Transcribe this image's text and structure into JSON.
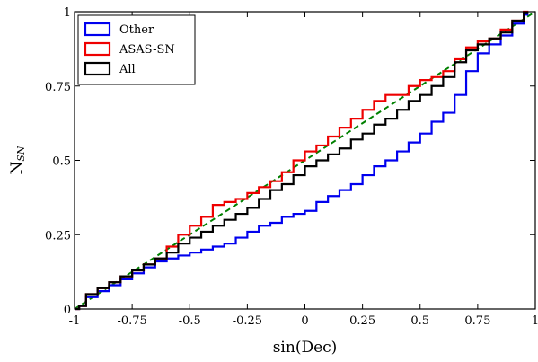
{
  "chart_data": {
    "type": "line",
    "title": "",
    "xlabel": "sin(Dec)",
    "ylabel": {
      "main": "N",
      "sub": "SN"
    },
    "xlim": [
      -1,
      1
    ],
    "ylim": [
      0,
      1
    ],
    "xticks": [
      -1,
      -0.75,
      -0.5,
      -0.25,
      0,
      0.25,
      0.5,
      0.75,
      1
    ],
    "xtick_labels": [
      "-1",
      "-0.75",
      "-0.5",
      "-0.25",
      "0",
      "0.25",
      "0.5",
      "0.75",
      "1"
    ],
    "yticks": [
      0,
      0.25,
      0.5,
      0.75,
      1
    ],
    "ytick_labels": [
      "0",
      "0.25",
      "0.5",
      "0.75",
      "1"
    ],
    "grid": false,
    "legend_position": "top-left",
    "series": [
      {
        "name": "Other",
        "color": "#0000ee",
        "style": "step",
        "x": [
          -1,
          -0.98,
          -0.95,
          -0.9,
          -0.85,
          -0.8,
          -0.75,
          -0.7,
          -0.65,
          -0.6,
          -0.55,
          -0.5,
          -0.45,
          -0.4,
          -0.35,
          -0.3,
          -0.25,
          -0.2,
          -0.15,
          -0.1,
          -0.05,
          0,
          0.05,
          0.1,
          0.15,
          0.2,
          0.25,
          0.3,
          0.35,
          0.4,
          0.45,
          0.5,
          0.55,
          0.6,
          0.65,
          0.7,
          0.75,
          0.8,
          0.85,
          0.9,
          0.95
        ],
        "y": [
          0,
          0.01,
          0.04,
          0.06,
          0.08,
          0.1,
          0.12,
          0.14,
          0.16,
          0.17,
          0.18,
          0.19,
          0.2,
          0.21,
          0.22,
          0.24,
          0.26,
          0.28,
          0.29,
          0.31,
          0.32,
          0.33,
          0.36,
          0.38,
          0.4,
          0.42,
          0.45,
          0.48,
          0.5,
          0.53,
          0.56,
          0.59,
          0.63,
          0.66,
          0.72,
          0.8,
          0.86,
          0.89,
          0.92,
          0.96,
          0.99
        ],
        "x_end": 0.97
      },
      {
        "name": "ASAS-SN",
        "color": "#ee0000",
        "style": "step",
        "x": [
          -1,
          -0.98,
          -0.95,
          -0.9,
          -0.85,
          -0.8,
          -0.75,
          -0.7,
          -0.65,
          -0.6,
          -0.55,
          -0.5,
          -0.45,
          -0.4,
          -0.35,
          -0.3,
          -0.25,
          -0.2,
          -0.15,
          -0.1,
          -0.05,
          0,
          0.05,
          0.1,
          0.15,
          0.2,
          0.25,
          0.3,
          0.35,
          0.4,
          0.45,
          0.5,
          0.55,
          0.6,
          0.65,
          0.7,
          0.75,
          0.8,
          0.85,
          0.9,
          0.95
        ],
        "y": [
          0,
          0.01,
          0.05,
          0.07,
          0.09,
          0.11,
          0.13,
          0.15,
          0.17,
          0.21,
          0.25,
          0.28,
          0.31,
          0.35,
          0.36,
          0.37,
          0.39,
          0.41,
          0.43,
          0.46,
          0.5,
          0.53,
          0.55,
          0.58,
          0.61,
          0.64,
          0.67,
          0.7,
          0.72,
          0.72,
          0.75,
          0.77,
          0.78,
          0.8,
          0.84,
          0.88,
          0.9,
          0.91,
          0.94,
          0.97,
          1.0
        ],
        "x_end": 0.97
      },
      {
        "name": "All",
        "color": "#000000",
        "style": "step",
        "x": [
          -1,
          -0.98,
          -0.95,
          -0.9,
          -0.85,
          -0.8,
          -0.75,
          -0.7,
          -0.65,
          -0.6,
          -0.55,
          -0.5,
          -0.45,
          -0.4,
          -0.35,
          -0.3,
          -0.25,
          -0.2,
          -0.15,
          -0.1,
          -0.05,
          0,
          0.05,
          0.1,
          0.15,
          0.2,
          0.25,
          0.3,
          0.35,
          0.4,
          0.45,
          0.5,
          0.55,
          0.6,
          0.65,
          0.7,
          0.75,
          0.8,
          0.85,
          0.9,
          0.95
        ],
        "y": [
          0,
          0.01,
          0.05,
          0.07,
          0.09,
          0.11,
          0.13,
          0.15,
          0.17,
          0.19,
          0.22,
          0.24,
          0.26,
          0.28,
          0.3,
          0.32,
          0.34,
          0.37,
          0.4,
          0.42,
          0.45,
          0.48,
          0.5,
          0.52,
          0.54,
          0.57,
          0.59,
          0.62,
          0.64,
          0.67,
          0.7,
          0.72,
          0.75,
          0.78,
          0.83,
          0.87,
          0.89,
          0.91,
          0.93,
          0.97,
          0.995
        ],
        "x_end": 0.97
      }
    ],
    "reference_line": {
      "color": "#008000",
      "style": "dashed",
      "x": [
        -1,
        1
      ],
      "y": [
        0,
        1
      ]
    }
  }
}
